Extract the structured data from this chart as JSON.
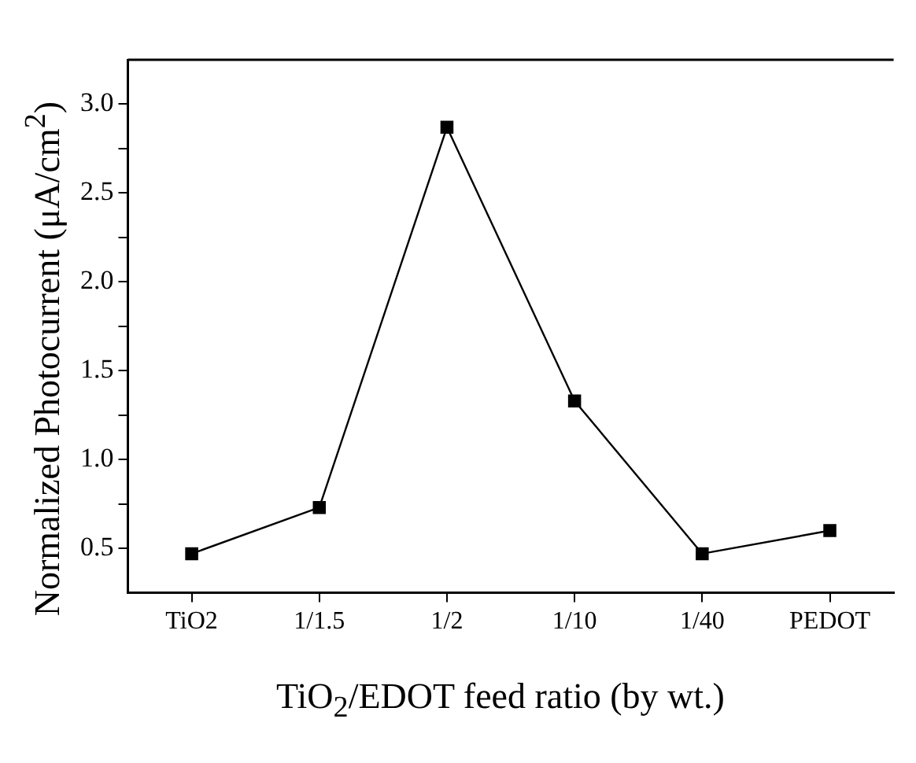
{
  "chart_data": {
    "type": "line",
    "xlabel": "TiO$_{2}$/EDOT feed ratio (by wt.)",
    "ylabel": "Normalized Photocurrent (μA/cm$^{2}$)",
    "categories": [
      "TiO2",
      "1/1.5",
      "1/2",
      "1/10",
      "1/40",
      "PEDOT"
    ],
    "series": [
      {
        "color": "#000000",
        "values": [
          0.47,
          0.73,
          2.87,
          1.33,
          0.47,
          0.6
        ]
      }
    ],
    "ylim": [
      0.25,
      3.25
    ],
    "yticks": [
      {
        "value": 0.5,
        "label": "0.5"
      },
      {
        "value": 0.75,
        "label": null
      },
      {
        "value": 1,
        "label": "1.0"
      },
      {
        "value": 1.25,
        "label": null
      },
      {
        "value": 1.5,
        "label": "1.5"
      },
      {
        "value": 1.75,
        "label": null
      },
      {
        "value": 2,
        "label": "2.0"
      },
      {
        "value": 2.25,
        "label": null
      },
      {
        "value": 2.5,
        "label": "2.5"
      },
      {
        "value": 2.75,
        "label": null
      },
      {
        "value": 3,
        "label": "3.0"
      }
    ],
    "marker": "square",
    "line_style": "solid",
    "grid": false,
    "legend": false
  }
}
